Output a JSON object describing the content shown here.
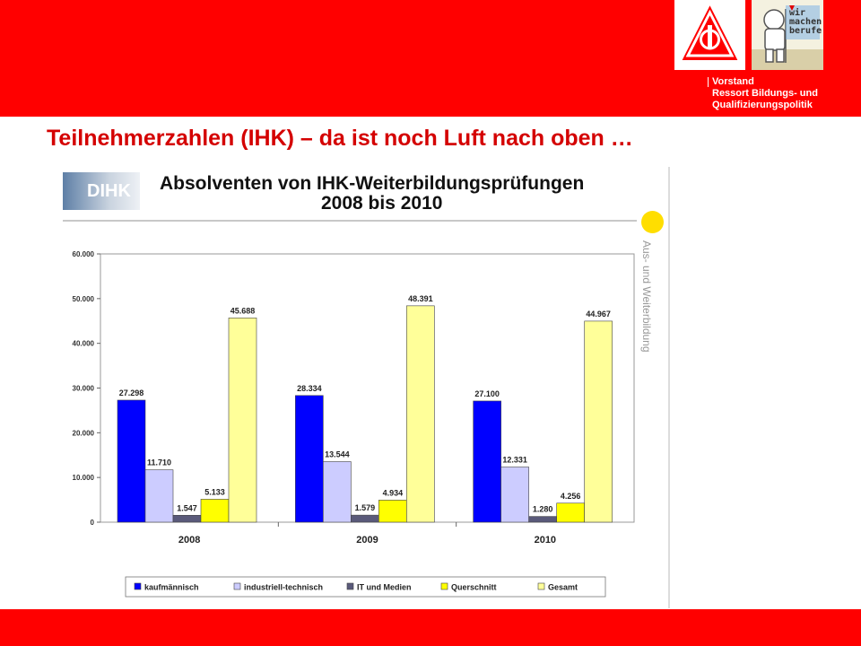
{
  "header": {
    "org_line1": "Vorstand",
    "org_line2": "Ressort Bildungs- und",
    "org_line3": "Qualifizierungspolitik",
    "logo_ig": "IG",
    "logo_campaign": "wir\nmachen\nberufe"
  },
  "page_title": "Teilnehmerzahlen (IHK) – da ist noch Luft nach oben …",
  "dihk_label": "DIHK",
  "side_label": "Aus- und Weiterbildung",
  "colors": {
    "brand_red": "#ff0000",
    "title_red": "#d40000",
    "accent_yellow": "#ffde00"
  },
  "chart_data": {
    "type": "bar",
    "title": "Absolventen von IHK-Weiterbildungsprüfungen",
    "subtitle": "2008 bis 2010",
    "categories": [
      "2008",
      "2009",
      "2010"
    ],
    "ylim": [
      0,
      60000
    ],
    "yticks": [
      "0",
      "10.000",
      "20.000",
      "30.000",
      "40.000",
      "50.000",
      "60.000"
    ],
    "series": [
      {
        "name": "kaufmännisch",
        "color": "#0000ff",
        "values": [
          27298,
          28334,
          27100
        ],
        "labels": [
          "27.298",
          "28.334",
          "27.100"
        ]
      },
      {
        "name": "industriell-technisch",
        "color": "#ccccff",
        "values": [
          11710,
          13544,
          12331
        ],
        "labels": [
          "11.710",
          "13.544",
          "12.331"
        ]
      },
      {
        "name": "IT und Medien",
        "color": "#5a5a7a",
        "values": [
          1547,
          1579,
          1280
        ],
        "labels": [
          "1.547",
          "1.579",
          "1.280"
        ]
      },
      {
        "name": "Querschnitt",
        "color": "#ffff00",
        "values": [
          5133,
          4934,
          4256
        ],
        "labels": [
          "5.133",
          "4.934",
          "4.256"
        ]
      },
      {
        "name": "Gesamt",
        "color": "#ffff99",
        "values": [
          45688,
          48391,
          44967
        ],
        "labels": [
          "45.688",
          "48.391",
          "44.967"
        ]
      }
    ],
    "grid": false,
    "legend_position": "bottom"
  }
}
